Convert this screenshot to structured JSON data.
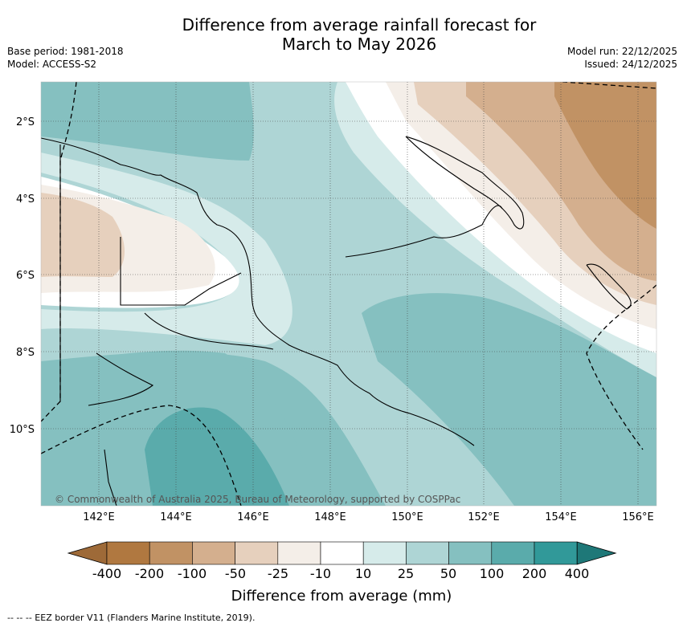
{
  "header": {
    "title_line1": "Difference from average rainfall forecast for",
    "title_line2": "March to May 2026",
    "base_period": "Base period: 1981-2018",
    "model": "Model: ACCESS-S2",
    "model_run": "Model run: 22/12/2025",
    "issued": "Issued: 24/12/2025"
  },
  "map": {
    "lat_labels": [
      "2°S",
      "4°S",
      "6°S",
      "8°S",
      "10°S"
    ],
    "lon_labels": [
      "142°E",
      "144°E",
      "146°E",
      "148°E",
      "150°E",
      "152°E",
      "154°E",
      "156°E"
    ],
    "credit": "© Commonwealth of Australia 2025, Bureau of Meteorology, supported by COSPPac"
  },
  "legend": {
    "ticks": [
      "-400",
      "-200",
      "-100",
      "-50",
      "-25",
      "-10",
      "10",
      "25",
      "50",
      "100",
      "200",
      "400"
    ],
    "colors": [
      "#9e6a38",
      "#b07840",
      "#c19264",
      "#d4af8e",
      "#e6d0bd",
      "#f4eee8",
      "#ffffff",
      "#d6ebea",
      "#aed5d5",
      "#85c0c0",
      "#5aabab",
      "#319999",
      "#1e7878"
    ],
    "title": "Difference from average (mm)"
  },
  "footer": {
    "eez_note": "-- -- -- EEZ border V11 (Flanders Marine Institute, 2019)."
  }
}
